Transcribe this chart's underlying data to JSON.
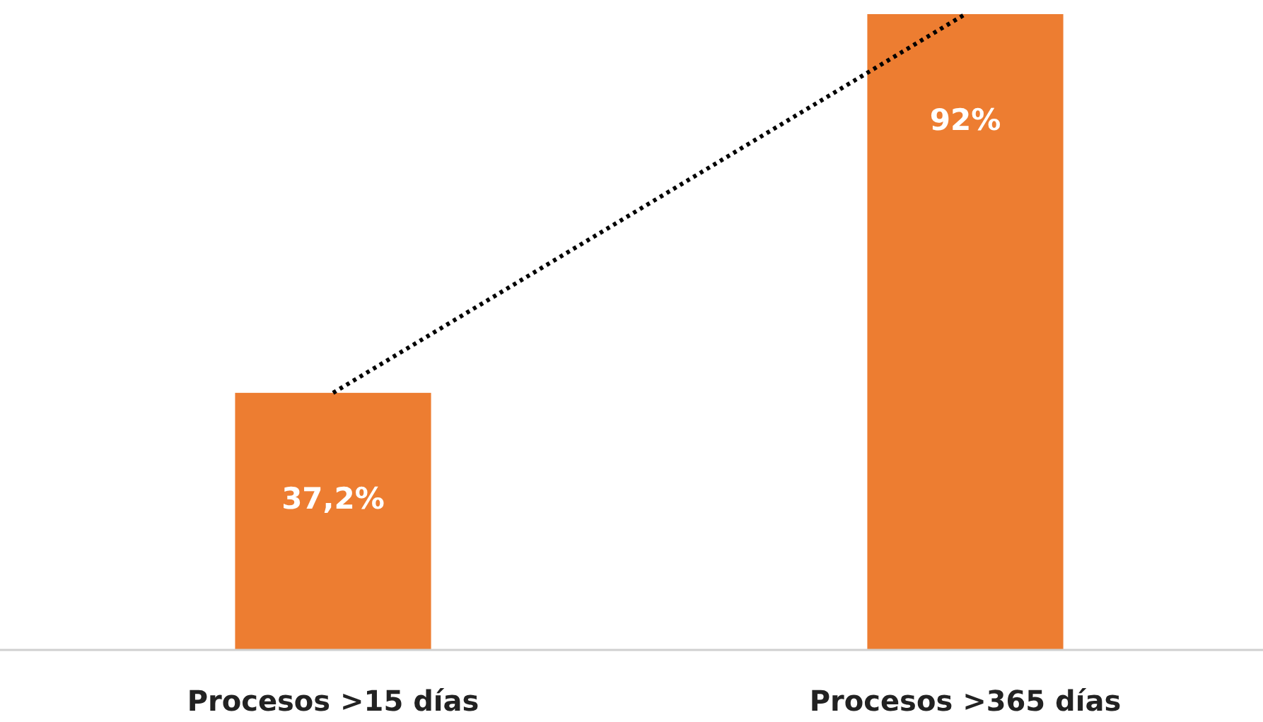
{
  "chart_data": {
    "type": "bar",
    "categories": [
      "Procesos >15 días",
      "Procesos >365 días"
    ],
    "series": [
      {
        "color": "#ed7d31",
        "values": [
          37.2,
          92
        ],
        "value_labels": [
          "37,2%",
          "92%"
        ]
      },
      {
        "type": "line",
        "color": "#000000",
        "values": [
          37.2,
          92
        ],
        "line_style": "dotted",
        "marker": "none"
      }
    ]
  }
}
